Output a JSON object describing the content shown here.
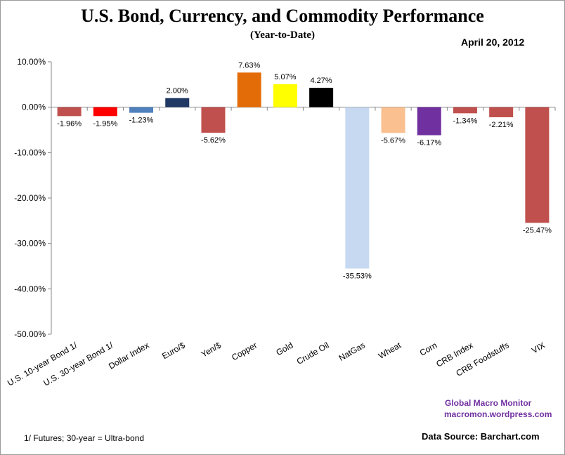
{
  "header": {
    "title": "U.S. Bond, Currency, and Commodity Performance",
    "subtitle": "(Year-to-Date)",
    "date": "April 20, 2012"
  },
  "footer": {
    "brand": "Global Macro Monitor",
    "url": "macromon.wordpress.com",
    "footnote": "1/   Futures; 30-year = Ultra-bond",
    "source": "Data Source:  Barchart.com"
  },
  "chart_data": {
    "type": "bar",
    "title": "U.S. Bond, Currency, and Commodity Performance",
    "subtitle": "(Year-to-Date)",
    "xlabel": "",
    "ylabel": "",
    "ylim": [
      -50,
      10
    ],
    "yticks": [
      10,
      0,
      -10,
      -20,
      -30,
      -40,
      -50
    ],
    "ytick_labels": [
      "10.00%",
      "0.00%",
      "-10.00%",
      "-20.00%",
      "-30.00%",
      "-40.00%",
      "-50.00%"
    ],
    "grid": false,
    "legend": "none",
    "categories": [
      "U.S. 10-year Bond 1/",
      "U.S. 30-year Bond 1/",
      "Dollar Index",
      "Euro/$",
      "Yen/$",
      "Copper",
      "Gold",
      "Crude Oil",
      "NatGas",
      "Wheat",
      "Corn",
      "CRB Index",
      "CRB Foodstuffs",
      "VIX"
    ],
    "values": [
      -1.96,
      -1.95,
      -1.23,
      2.0,
      -5.62,
      7.63,
      5.07,
      4.27,
      -35.53,
      -5.67,
      -6.17,
      -1.34,
      -2.21,
      -25.47
    ],
    "value_labels": [
      "-1.96%",
      "-1.95%",
      "-1.23%",
      "2.00%",
      "-5.62%",
      "7.63%",
      "5.07%",
      "4.27%",
      "-35.53%",
      "-5.67%",
      "-6.17%",
      "-1.34%",
      "-2.21%",
      "-25.47%"
    ],
    "colors": [
      "#c0504d",
      "#ff0000",
      "#4f81bd",
      "#1f3864",
      "#c0504d",
      "#e36c09",
      "#ffff00",
      "#000000",
      "#c6d9f1",
      "#fac090",
      "#7030a0",
      "#c0504d",
      "#c0504d",
      "#c0504d"
    ]
  }
}
